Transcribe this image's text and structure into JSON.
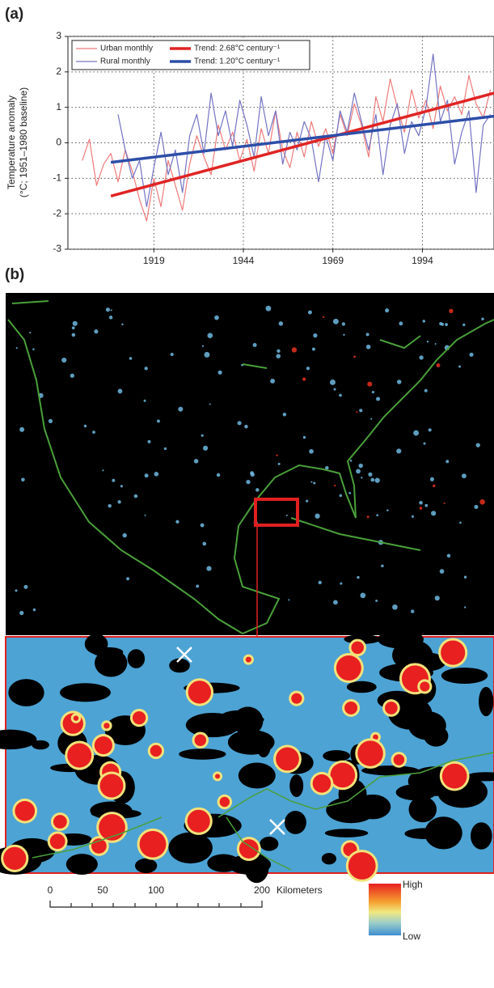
{
  "panel_labels": [
    "(a)",
    "(b)"
  ],
  "chart_data": {
    "type": "line",
    "ylabel": [
      "Temperature anomaly",
      "(°C; 1951–1980 baseline)"
    ],
    "xlim": [
      1895,
      2014
    ],
    "xticks": [
      1919,
      1944,
      1969,
      1994
    ],
    "ylim": [
      -3,
      3
    ],
    "yticks": [
      -3,
      -2,
      -1,
      0,
      1,
      2,
      3
    ],
    "grid": true,
    "legend": "upper left",
    "x": [
      1899,
      1901,
      1903,
      1905,
      1907,
      1909,
      1911,
      1913,
      1915,
      1917,
      1919,
      1921,
      1923,
      1925,
      1927,
      1929,
      1931,
      1933,
      1935,
      1937,
      1939,
      1941,
      1943,
      1945,
      1947,
      1949,
      1951,
      1953,
      1955,
      1957,
      1959,
      1961,
      1963,
      1965,
      1967,
      1969,
      1971,
      1973,
      1975,
      1977,
      1979,
      1981,
      1983,
      1985,
      1987,
      1989,
      1991,
      1993,
      1995,
      1997,
      1999,
      2001,
      2003,
      2005,
      2007,
      2009,
      2011,
      2013
    ],
    "series": [
      {
        "name": "Urban monthly",
        "color": "#ef7a7a",
        "width": 1.2,
        "values": [
          -0.5,
          0.1,
          -1.2,
          -0.6,
          -0.3,
          -1.1,
          -0.2,
          -0.8,
          -1.6,
          -2.2,
          -1.0,
          -1.8,
          -0.5,
          -1.2,
          -1.9,
          -0.6,
          0.2,
          -0.4,
          -0.9,
          0.5,
          -0.2,
          0.3,
          -0.5,
          0.1,
          -0.8,
          0.4,
          -0.3,
          0.9,
          -0.2,
          -0.7,
          0.3,
          -0.4,
          0.6,
          -0.1,
          0.4,
          -0.3,
          0.8,
          0.2,
          1.1,
          0.5,
          -0.4,
          1.3,
          0.6,
          1.8,
          1.0,
          0.3,
          1.5,
          0.7,
          1.2,
          0.4,
          1.6,
          0.9,
          1.3,
          0.8,
          1.9,
          1.1,
          0.7,
          1.5
        ]
      },
      {
        "name": "Rural monthly",
        "color": "#7373c4",
        "width": 1.2,
        "values": [
          null,
          null,
          null,
          null,
          null,
          0.8,
          -0.2,
          -1.0,
          -0.5,
          -1.8,
          -0.7,
          0.3,
          -0.9,
          -0.2,
          -1.4,
          0.2,
          0.8,
          -0.3,
          1.4,
          0.2,
          0.9,
          -0.1,
          1.2,
          0.5,
          -0.4,
          1.3,
          0.2,
          0.9,
          -0.6,
          0.3,
          -0.2,
          0.6,
          0.1,
          -1.1,
          0.2,
          -0.5,
          0.9,
          0.3,
          1.4,
          0.6,
          -0.2,
          0.8,
          -0.9,
          0.5,
          1.1,
          -0.3,
          0.6,
          0.2,
          1.0,
          2.5,
          0.6,
          1.2,
          -0.6,
          0.3,
          0.9,
          -1.4,
          0.5,
          0.8
        ]
      },
      {
        "name": "Trend: 2.68°C century⁻¹",
        "color": "#e02424",
        "width": 3.5,
        "x": [
          1907,
          2014
        ],
        "values": [
          -1.5,
          1.4
        ]
      },
      {
        "name": "Trend: 1.20°C century⁻¹",
        "color": "#2d4ea8",
        "width": 3.5,
        "x": [
          1907,
          2014
        ],
        "values": [
          -0.55,
          0.75
        ]
      }
    ]
  },
  "map": {
    "scale_bar": {
      "labels": [
        "0",
        "50",
        "100",
        "200"
      ],
      "unit": "Kilometers"
    },
    "colorbar": {
      "high": "High",
      "low": "Low"
    }
  }
}
